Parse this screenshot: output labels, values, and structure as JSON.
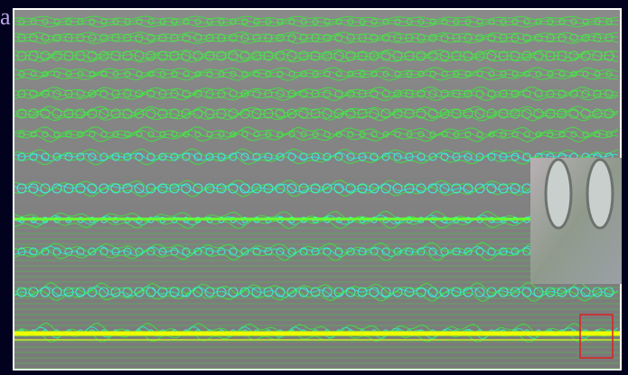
{
  "panel_label": "a"
}
